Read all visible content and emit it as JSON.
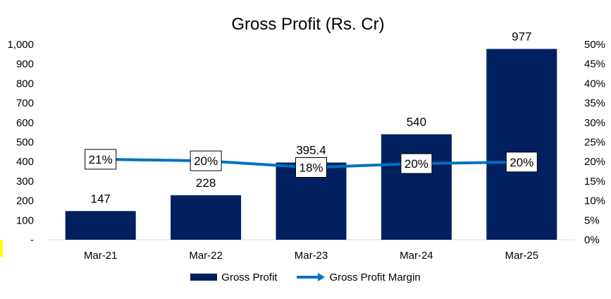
{
  "chart_data": {
    "type": "bar",
    "title": "Gross Profit (Rs. Cr)",
    "categories": [
      "Mar-21",
      "Mar-22",
      "Mar-23",
      "Mar-24",
      "Mar-25"
    ],
    "series": [
      {
        "name": "Gross Profit",
        "type": "bar",
        "axis": "left",
        "values": [
          147,
          228,
          395.4,
          540,
          977
        ],
        "labels": [
          "147",
          "228",
          "395.4",
          "540",
          "977"
        ],
        "color": "#002060"
      },
      {
        "name": "Gross Profit Margin",
        "type": "line",
        "axis": "right",
        "values": [
          0.206,
          0.202,
          0.185,
          0.195,
          0.199
        ],
        "labels": [
          "21%",
          "20%",
          "18%",
          "20%",
          "20%"
        ],
        "color": "#0070C0"
      }
    ],
    "y_left": {
      "min": 0,
      "max": 1000,
      "ticks": [
        "-",
        "100",
        "200",
        "300",
        "400",
        "500",
        "600",
        "700",
        "800",
        "900",
        "1,000"
      ]
    },
    "y_right": {
      "min": 0,
      "max": 0.5,
      "ticks": [
        "0%",
        "5%",
        "10%",
        "15%",
        "20%",
        "25%",
        "30%",
        "35%",
        "40%",
        "45%",
        "50%"
      ]
    },
    "grid": false,
    "legend_position": "bottom"
  }
}
